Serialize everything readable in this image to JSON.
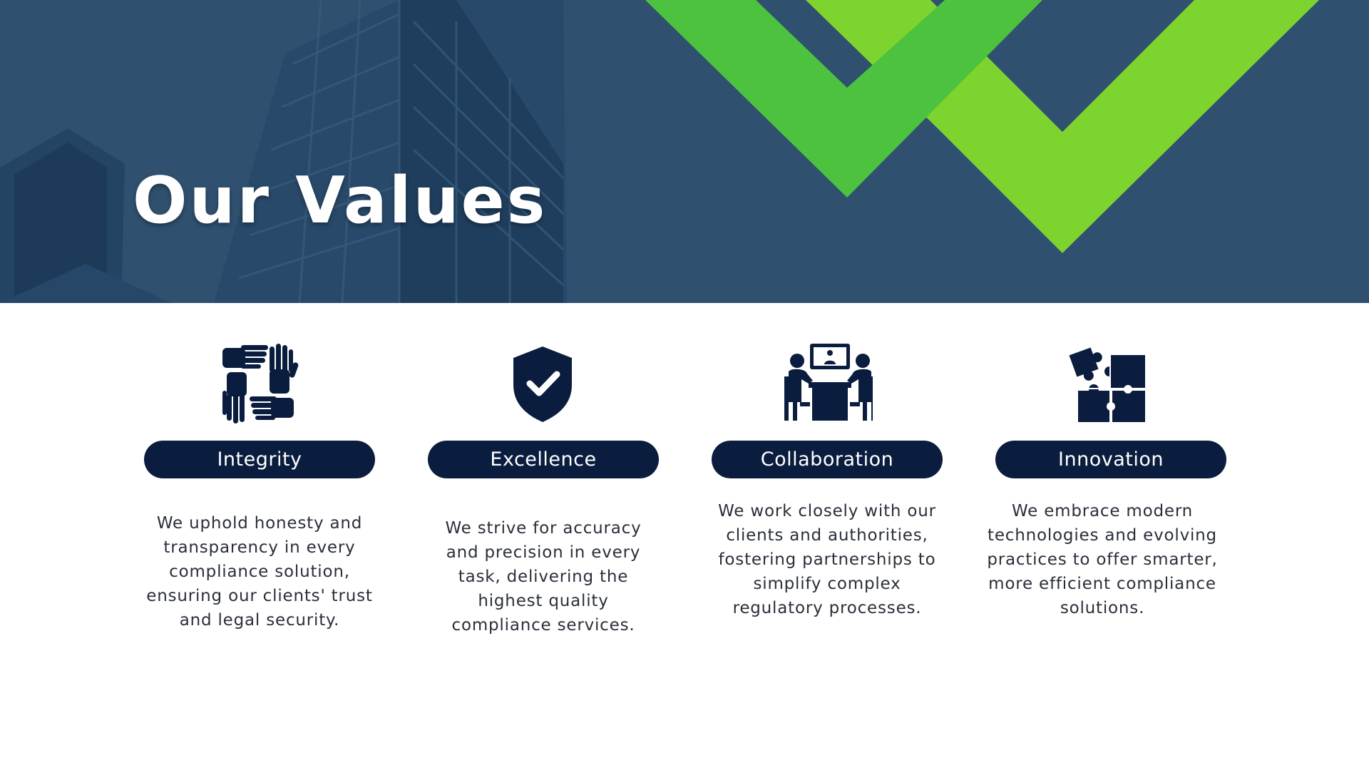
{
  "header": {
    "title": "Our Values"
  },
  "values": [
    {
      "title": "Integrity",
      "icon": "four-hands-icon",
      "description": "We uphold honesty and transparency in every compliance solution, ensuring our clients' trust and legal security."
    },
    {
      "title": "Excellence",
      "icon": "shield-check-icon",
      "description": "We strive for accuracy and precision in every task, delivering the highest quality compliance services."
    },
    {
      "title": "Collaboration",
      "icon": "meeting-table-icon",
      "description": "We work closely with our clients and authorities, fostering partnerships to simplify complex regulatory processes."
    },
    {
      "title": "Innovation",
      "icon": "puzzle-pieces-icon",
      "description": "We embrace modern technologies and evolving practices to offer smarter, more efficient compliance solutions."
    }
  ],
  "colors": {
    "navy": "#0b1d3e",
    "hero_blue": "#2f506f",
    "green_dark": "#4cc23f",
    "green_light": "#7ed42e",
    "text": "#2a2f3a"
  }
}
